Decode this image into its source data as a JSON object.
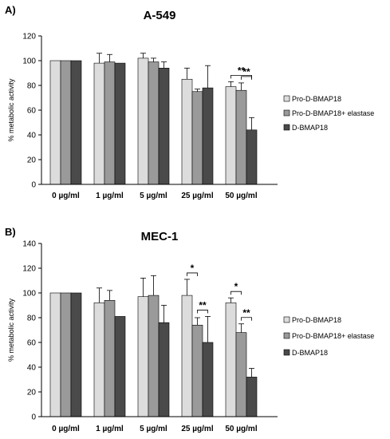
{
  "colors": [
    "#dcdcdc",
    "#9a9a9a",
    "#4a4a4a"
  ],
  "chart_data": [
    {
      "panel": "A)",
      "title": "A-549",
      "type": "bar",
      "ylabel": "% metabolic activity",
      "ylim": [
        0,
        120
      ],
      "yticks": [
        0,
        20,
        40,
        60,
        80,
        100,
        120
      ],
      "categories": [
        "0 µg/ml",
        "1 µg/ml",
        "5 µg/ml",
        "25 µg/ml",
        "50 µg/ml"
      ],
      "series": [
        {
          "name": "Pro-D-BMAP18",
          "values": [
            100,
            98,
            102,
            85,
            79
          ],
          "errors": [
            0,
            8,
            4,
            9,
            4
          ]
        },
        {
          "name": "Pro-D-BMAP18+ elastase",
          "values": [
            100,
            99,
            99,
            75,
            76
          ],
          "errors": [
            0,
            6,
            3,
            2,
            6
          ]
        },
        {
          "name": "D-BMAP18",
          "values": [
            100,
            98,
            94,
            78,
            44
          ],
          "errors": [
            0,
            0,
            5,
            18,
            10
          ]
        }
      ],
      "significance": [
        {
          "category": "50 µg/ml",
          "from": 0,
          "to": 2,
          "label": "**"
        },
        {
          "category": "50 µg/ml",
          "from": 1,
          "to": 2,
          "label": "**"
        }
      ],
      "legend_position": "right"
    },
    {
      "panel": "B)",
      "title": "MEC-1",
      "type": "bar",
      "ylabel": "% metabolic activity",
      "ylim": [
        0,
        140
      ],
      "yticks": [
        0,
        20,
        40,
        60,
        80,
        100,
        120,
        140
      ],
      "categories": [
        "0 µg/ml",
        "1 µg/ml",
        "5 µg/ml",
        "25 µg/ml",
        "50 µg/ml"
      ],
      "series": [
        {
          "name": "Pro-D-BMAP18",
          "values": [
            100,
            92,
            97,
            98,
            92
          ],
          "errors": [
            0,
            12,
            15,
            13,
            4
          ]
        },
        {
          "name": "Pro-D-BMAP18+ elastase",
          "values": [
            100,
            94,
            98,
            74,
            68
          ],
          "errors": [
            0,
            8,
            16,
            6,
            7
          ]
        },
        {
          "name": "D-BMAP18",
          "values": [
            100,
            81,
            76,
            60,
            32
          ],
          "errors": [
            0,
            0,
            14,
            21,
            7
          ]
        }
      ],
      "significance": [
        {
          "category": "25 µg/ml",
          "from": 0,
          "to": 1,
          "label": "*"
        },
        {
          "category": "25 µg/ml",
          "from": 1,
          "to": 2,
          "label": "**"
        },
        {
          "category": "50 µg/ml",
          "from": 0,
          "to": 1,
          "label": "*"
        },
        {
          "category": "50 µg/ml",
          "from": 1,
          "to": 2,
          "label": "**"
        }
      ],
      "legend_position": "right"
    }
  ]
}
